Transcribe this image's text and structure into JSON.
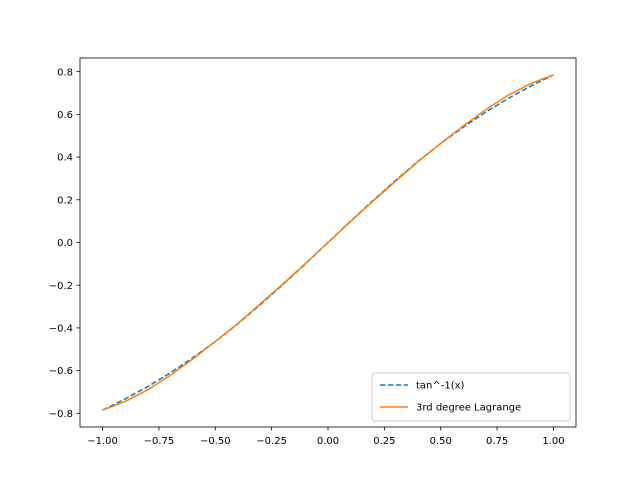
{
  "chart_data": {
    "type": "line",
    "title": "",
    "xlabel": "",
    "ylabel": "",
    "xlim": [
      -1.1,
      1.1
    ],
    "ylim": [
      -0.864,
      0.864
    ],
    "grid": false,
    "legend_position": "lower-right",
    "x_ticks": [
      -1.0,
      -0.75,
      -0.5,
      -0.25,
      0.0,
      0.25,
      0.5,
      0.75,
      1.0
    ],
    "x_tick_labels": [
      "−1.00",
      "−0.75",
      "−0.50",
      "−0.25",
      "0.00",
      "0.25",
      "0.50",
      "0.75",
      "1.00"
    ],
    "y_ticks": [
      -0.8,
      -0.6,
      -0.4,
      -0.2,
      0.0,
      0.2,
      0.4,
      0.6,
      0.8
    ],
    "y_tick_labels": [
      "−0.8",
      "−0.6",
      "−0.4",
      "−0.2",
      "0.0",
      "0.2",
      "0.4",
      "0.6",
      "0.8"
    ],
    "x": [
      -1.0,
      -0.9,
      -0.8,
      -0.7,
      -0.6,
      -0.5,
      -0.4,
      -0.3,
      -0.2,
      -0.1,
      0.0,
      0.1,
      0.2,
      0.3,
      0.4,
      0.5,
      0.6,
      0.7,
      0.8,
      0.9,
      1.0
    ],
    "series": [
      {
        "name": "tan^-1(x)",
        "style": "dashed",
        "color": "#1f77b4",
        "values": [
          -0.785,
          -0.733,
          -0.675,
          -0.611,
          -0.54,
          -0.464,
          -0.381,
          -0.291,
          -0.197,
          -0.1,
          0.0,
          0.1,
          0.197,
          0.291,
          0.381,
          0.464,
          0.54,
          0.611,
          0.675,
          0.733,
          0.785
        ]
      },
      {
        "name": "3rd degree Lagrange",
        "style": "solid",
        "color": "#ff7f0e",
        "values": [
          -0.785,
          -0.745,
          -0.69,
          -0.622,
          -0.546,
          -0.464,
          -0.379,
          -0.287,
          -0.194,
          -0.098,
          0.0,
          0.098,
          0.194,
          0.287,
          0.379,
          0.464,
          0.546,
          0.622,
          0.69,
          0.745,
          0.785
        ]
      }
    ]
  }
}
